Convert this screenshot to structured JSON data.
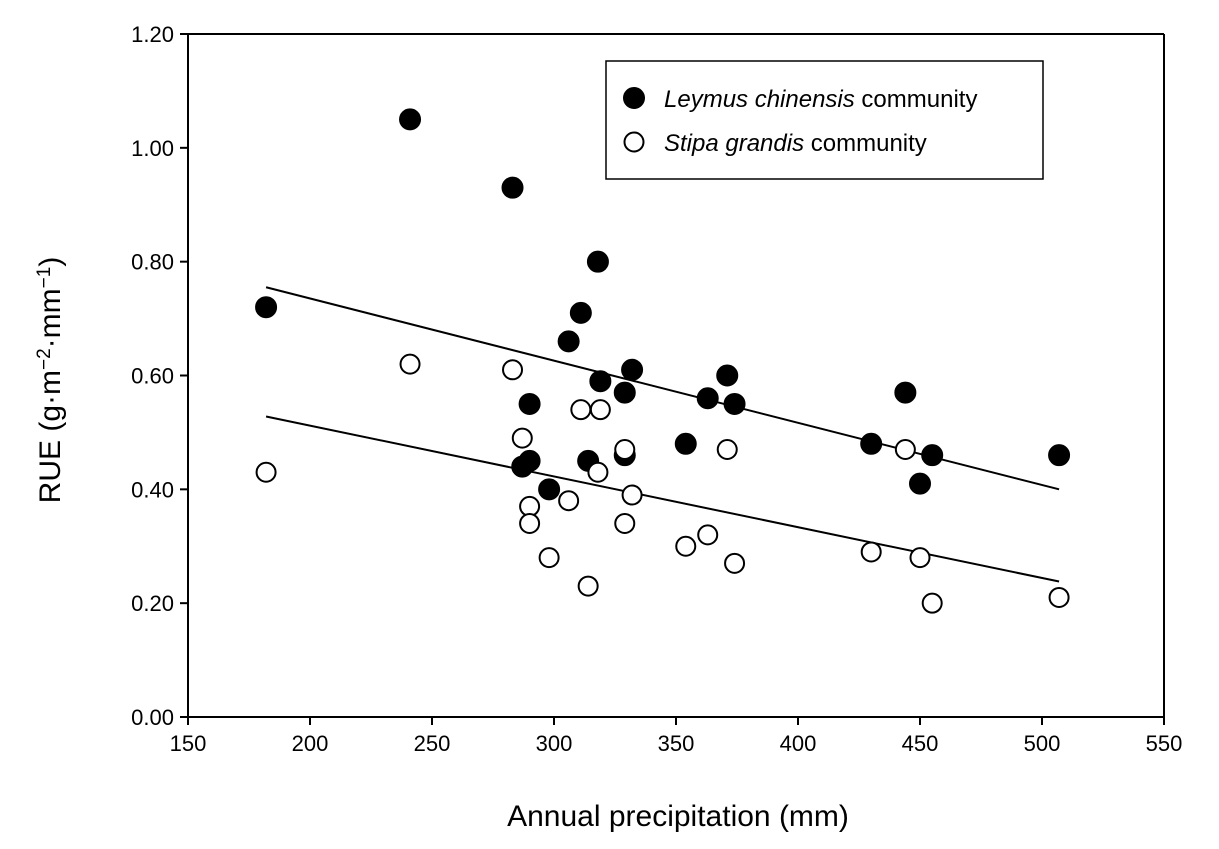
{
  "chart_data": {
    "type": "scatter",
    "title": "",
    "xlabel": "Annual precipitation (mm)",
    "ylabel": {
      "prefix": "RUE (g·m",
      "sup1": "−2",
      "middle": "·mm",
      "sup2": "−1",
      "suffix": ")"
    },
    "xlim": [
      150,
      550
    ],
    "ylim": [
      0,
      1.2
    ],
    "x_ticks": [
      150,
      200,
      250,
      300,
      350,
      400,
      450,
      500,
      550
    ],
    "x_tick_labels": [
      "150",
      "200",
      "250",
      "300",
      "350",
      "400",
      "450",
      "500",
      "550"
    ],
    "y_ticks": [
      0,
      0.2,
      0.4,
      0.6,
      0.8,
      1.0,
      1.2
    ],
    "y_tick_labels": [
      "0.00",
      "0.20",
      "0.40",
      "0.60",
      "0.80",
      "1.00",
      "1.20"
    ],
    "grid": false,
    "legend_position": "top-right",
    "series": [
      {
        "name_italic": "Leymus chinensis",
        "name_rest": " community",
        "marker": "filled-circle",
        "color": "#000000",
        "points": [
          [
            182,
            0.72
          ],
          [
            241,
            1.05
          ],
          [
            283,
            0.93
          ],
          [
            318,
            0.8
          ],
          [
            311,
            0.71
          ],
          [
            306,
            0.66
          ],
          [
            332,
            0.61
          ],
          [
            319,
            0.59
          ],
          [
            329,
            0.57
          ],
          [
            290,
            0.55
          ],
          [
            371,
            0.6
          ],
          [
            363,
            0.56
          ],
          [
            374,
            0.55
          ],
          [
            444,
            0.57
          ],
          [
            354,
            0.48
          ],
          [
            430,
            0.48
          ],
          [
            329,
            0.46
          ],
          [
            314,
            0.45
          ],
          [
            290,
            0.45
          ],
          [
            287,
            0.44
          ],
          [
            298,
            0.4
          ],
          [
            455,
            0.46
          ],
          [
            450,
            0.41
          ],
          [
            507,
            0.46
          ]
        ],
        "trend": {
          "x": [
            182,
            507
          ],
          "y": [
            0.755,
            0.4
          ]
        }
      },
      {
        "name_italic": "Stipa grandis",
        "name_rest": " community",
        "marker": "open-circle",
        "color": "#000000",
        "points": [
          [
            182,
            0.43
          ],
          [
            241,
            0.62
          ],
          [
            283,
            0.61
          ],
          [
            311,
            0.54
          ],
          [
            319,
            0.54
          ],
          [
            287,
            0.49
          ],
          [
            329,
            0.47
          ],
          [
            318,
            0.43
          ],
          [
            332,
            0.39
          ],
          [
            306,
            0.38
          ],
          [
            290,
            0.37
          ],
          [
            290,
            0.34
          ],
          [
            329,
            0.34
          ],
          [
            298,
            0.28
          ],
          [
            314,
            0.23
          ],
          [
            371,
            0.47
          ],
          [
            363,
            0.32
          ],
          [
            354,
            0.3
          ],
          [
            374,
            0.27
          ],
          [
            430,
            0.29
          ],
          [
            444,
            0.47
          ],
          [
            450,
            0.28
          ],
          [
            455,
            0.2
          ],
          [
            507,
            0.21
          ]
        ],
        "trend": {
          "x": [
            182,
            507
          ],
          "y": [
            0.528,
            0.238
          ]
        }
      }
    ]
  }
}
